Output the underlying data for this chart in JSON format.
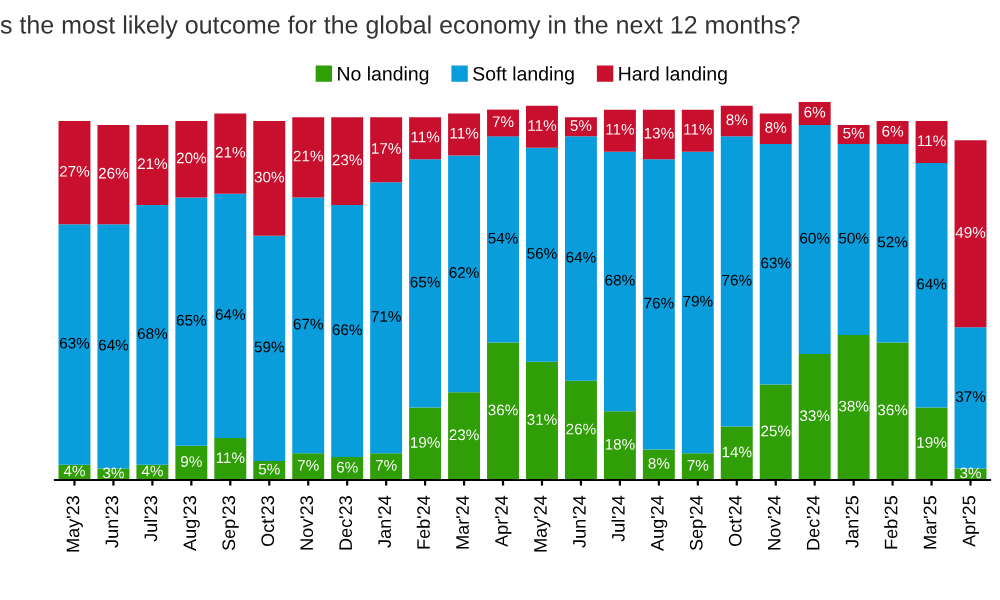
{
  "chart_data": {
    "type": "bar",
    "stacked": true,
    "title": "s the most likely outcome for the global economy in the next 12 months?",
    "categories": [
      "May'23",
      "Jun'23",
      "Jul'23",
      "Aug'23",
      "Sep'23",
      "Oct'23",
      "Nov'23",
      "Dec'23",
      "Jan'24",
      "Feb'24",
      "Mar'24",
      "Apr'24",
      "May'24",
      "Jun'24",
      "Jul'24",
      "Aug'24",
      "Sep'24",
      "Oct'24",
      "Nov'24",
      "Dec'24",
      "Jan'25",
      "Feb'25",
      "Mar'25",
      "Apr'25"
    ],
    "series": [
      {
        "name": "No landing",
        "color": "#2f9e07",
        "values": [
          4,
          3,
          4,
          9,
          11,
          5,
          7,
          6,
          7,
          19,
          23,
          36,
          31,
          26,
          18,
          8,
          7,
          14,
          25,
          33,
          38,
          36,
          19,
          3
        ],
        "value_labels": [
          "4%",
          "3%",
          "4%",
          "9%",
          "11%",
          "5%",
          "7%",
          "6%",
          "7%",
          "19%",
          "23%",
          "36%",
          "31%",
          "26%",
          "18%",
          "8%",
          "7%",
          "14%",
          "25%",
          "33%",
          "38%",
          "36%",
          "19%",
          "3%"
        ]
      },
      {
        "name": "Soft landing",
        "color": "#0a9ddc",
        "values": [
          63,
          64,
          68,
          65,
          64,
          59,
          67,
          66,
          71,
          65,
          62,
          54,
          56,
          64,
          68,
          76,
          79,
          76,
          63,
          60,
          50,
          52,
          64,
          37
        ],
        "value_labels": [
          "63%",
          "64%",
          "68%",
          "65%",
          "64%",
          "59%",
          "67%",
          "66%",
          "71%",
          "65%",
          "62%",
          "54%",
          "56%",
          "64%",
          "68%",
          "76%",
          "79%",
          "76%",
          "63%",
          "60%",
          "50%",
          "52%",
          "64%",
          "37%"
        ]
      },
      {
        "name": "Hard landing",
        "color": "#c8102e",
        "values": [
          27,
          26,
          21,
          20,
          21,
          30,
          21,
          23,
          17,
          11,
          11,
          7,
          11,
          5,
          11,
          13,
          11,
          8,
          8,
          6,
          5,
          6,
          11,
          49
        ],
        "value_labels": [
          "27%",
          "26%",
          "21%",
          "20%",
          "21%",
          "30%",
          "21%",
          "23%",
          "17%",
          "11%",
          "11%",
          "7%",
          "11%",
          "5%",
          "11%",
          "13%",
          "11%",
          "8%",
          "8%",
          "6%",
          "5%",
          "6%",
          "11%",
          "49%"
        ]
      }
    ],
    "tick_labels": "x",
    "legend": "top",
    "grid": false
  }
}
